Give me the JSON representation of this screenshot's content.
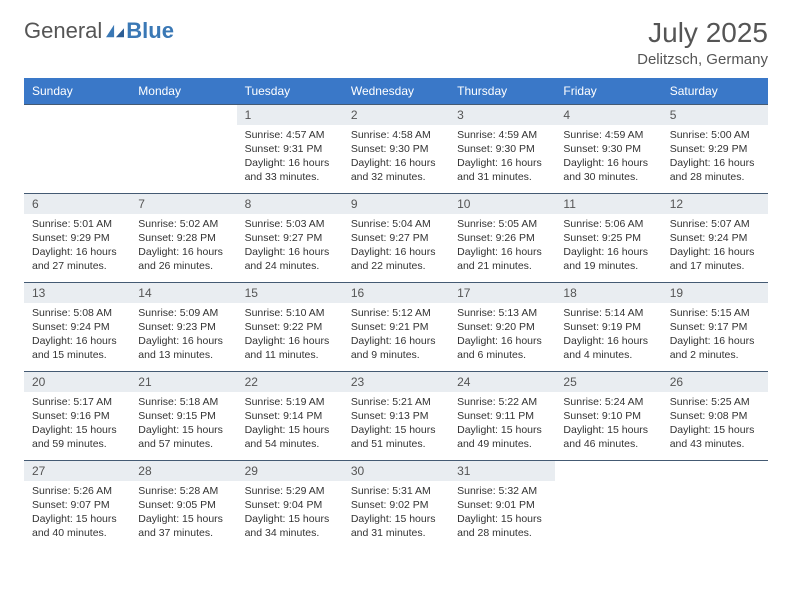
{
  "logo": {
    "main": "General",
    "accent": "Blue"
  },
  "title": "July 2025",
  "location": "Delitzsch, Germany",
  "header_bg": "#3a78c8",
  "header_fg": "#ffffff",
  "daynum_bg": "#e9edf1",
  "row_border": "#445a73",
  "weekdays": [
    "Sunday",
    "Monday",
    "Tuesday",
    "Wednesday",
    "Thursday",
    "Friday",
    "Saturday"
  ],
  "weeks": [
    [
      null,
      null,
      {
        "n": "1",
        "sr": "Sunrise: 4:57 AM",
        "ss": "Sunset: 9:31 PM",
        "d1": "Daylight: 16 hours",
        "d2": "and 33 minutes."
      },
      {
        "n": "2",
        "sr": "Sunrise: 4:58 AM",
        "ss": "Sunset: 9:30 PM",
        "d1": "Daylight: 16 hours",
        "d2": "and 32 minutes."
      },
      {
        "n": "3",
        "sr": "Sunrise: 4:59 AM",
        "ss": "Sunset: 9:30 PM",
        "d1": "Daylight: 16 hours",
        "d2": "and 31 minutes."
      },
      {
        "n": "4",
        "sr": "Sunrise: 4:59 AM",
        "ss": "Sunset: 9:30 PM",
        "d1": "Daylight: 16 hours",
        "d2": "and 30 minutes."
      },
      {
        "n": "5",
        "sr": "Sunrise: 5:00 AM",
        "ss": "Sunset: 9:29 PM",
        "d1": "Daylight: 16 hours",
        "d2": "and 28 minutes."
      }
    ],
    [
      {
        "n": "6",
        "sr": "Sunrise: 5:01 AM",
        "ss": "Sunset: 9:29 PM",
        "d1": "Daylight: 16 hours",
        "d2": "and 27 minutes."
      },
      {
        "n": "7",
        "sr": "Sunrise: 5:02 AM",
        "ss": "Sunset: 9:28 PM",
        "d1": "Daylight: 16 hours",
        "d2": "and 26 minutes."
      },
      {
        "n": "8",
        "sr": "Sunrise: 5:03 AM",
        "ss": "Sunset: 9:27 PM",
        "d1": "Daylight: 16 hours",
        "d2": "and 24 minutes."
      },
      {
        "n": "9",
        "sr": "Sunrise: 5:04 AM",
        "ss": "Sunset: 9:27 PM",
        "d1": "Daylight: 16 hours",
        "d2": "and 22 minutes."
      },
      {
        "n": "10",
        "sr": "Sunrise: 5:05 AM",
        "ss": "Sunset: 9:26 PM",
        "d1": "Daylight: 16 hours",
        "d2": "and 21 minutes."
      },
      {
        "n": "11",
        "sr": "Sunrise: 5:06 AM",
        "ss": "Sunset: 9:25 PM",
        "d1": "Daylight: 16 hours",
        "d2": "and 19 minutes."
      },
      {
        "n": "12",
        "sr": "Sunrise: 5:07 AM",
        "ss": "Sunset: 9:24 PM",
        "d1": "Daylight: 16 hours",
        "d2": "and 17 minutes."
      }
    ],
    [
      {
        "n": "13",
        "sr": "Sunrise: 5:08 AM",
        "ss": "Sunset: 9:24 PM",
        "d1": "Daylight: 16 hours",
        "d2": "and 15 minutes."
      },
      {
        "n": "14",
        "sr": "Sunrise: 5:09 AM",
        "ss": "Sunset: 9:23 PM",
        "d1": "Daylight: 16 hours",
        "d2": "and 13 minutes."
      },
      {
        "n": "15",
        "sr": "Sunrise: 5:10 AM",
        "ss": "Sunset: 9:22 PM",
        "d1": "Daylight: 16 hours",
        "d2": "and 11 minutes."
      },
      {
        "n": "16",
        "sr": "Sunrise: 5:12 AM",
        "ss": "Sunset: 9:21 PM",
        "d1": "Daylight: 16 hours",
        "d2": "and 9 minutes."
      },
      {
        "n": "17",
        "sr": "Sunrise: 5:13 AM",
        "ss": "Sunset: 9:20 PM",
        "d1": "Daylight: 16 hours",
        "d2": "and 6 minutes."
      },
      {
        "n": "18",
        "sr": "Sunrise: 5:14 AM",
        "ss": "Sunset: 9:19 PM",
        "d1": "Daylight: 16 hours",
        "d2": "and 4 minutes."
      },
      {
        "n": "19",
        "sr": "Sunrise: 5:15 AM",
        "ss": "Sunset: 9:17 PM",
        "d1": "Daylight: 16 hours",
        "d2": "and 2 minutes."
      }
    ],
    [
      {
        "n": "20",
        "sr": "Sunrise: 5:17 AM",
        "ss": "Sunset: 9:16 PM",
        "d1": "Daylight: 15 hours",
        "d2": "and 59 minutes."
      },
      {
        "n": "21",
        "sr": "Sunrise: 5:18 AM",
        "ss": "Sunset: 9:15 PM",
        "d1": "Daylight: 15 hours",
        "d2": "and 57 minutes."
      },
      {
        "n": "22",
        "sr": "Sunrise: 5:19 AM",
        "ss": "Sunset: 9:14 PM",
        "d1": "Daylight: 15 hours",
        "d2": "and 54 minutes."
      },
      {
        "n": "23",
        "sr": "Sunrise: 5:21 AM",
        "ss": "Sunset: 9:13 PM",
        "d1": "Daylight: 15 hours",
        "d2": "and 51 minutes."
      },
      {
        "n": "24",
        "sr": "Sunrise: 5:22 AM",
        "ss": "Sunset: 9:11 PM",
        "d1": "Daylight: 15 hours",
        "d2": "and 49 minutes."
      },
      {
        "n": "25",
        "sr": "Sunrise: 5:24 AM",
        "ss": "Sunset: 9:10 PM",
        "d1": "Daylight: 15 hours",
        "d2": "and 46 minutes."
      },
      {
        "n": "26",
        "sr": "Sunrise: 5:25 AM",
        "ss": "Sunset: 9:08 PM",
        "d1": "Daylight: 15 hours",
        "d2": "and 43 minutes."
      }
    ],
    [
      {
        "n": "27",
        "sr": "Sunrise: 5:26 AM",
        "ss": "Sunset: 9:07 PM",
        "d1": "Daylight: 15 hours",
        "d2": "and 40 minutes."
      },
      {
        "n": "28",
        "sr": "Sunrise: 5:28 AM",
        "ss": "Sunset: 9:05 PM",
        "d1": "Daylight: 15 hours",
        "d2": "and 37 minutes."
      },
      {
        "n": "29",
        "sr": "Sunrise: 5:29 AM",
        "ss": "Sunset: 9:04 PM",
        "d1": "Daylight: 15 hours",
        "d2": "and 34 minutes."
      },
      {
        "n": "30",
        "sr": "Sunrise: 5:31 AM",
        "ss": "Sunset: 9:02 PM",
        "d1": "Daylight: 15 hours",
        "d2": "and 31 minutes."
      },
      {
        "n": "31",
        "sr": "Sunrise: 5:32 AM",
        "ss": "Sunset: 9:01 PM",
        "d1": "Daylight: 15 hours",
        "d2": "and 28 minutes."
      },
      null,
      null
    ]
  ]
}
